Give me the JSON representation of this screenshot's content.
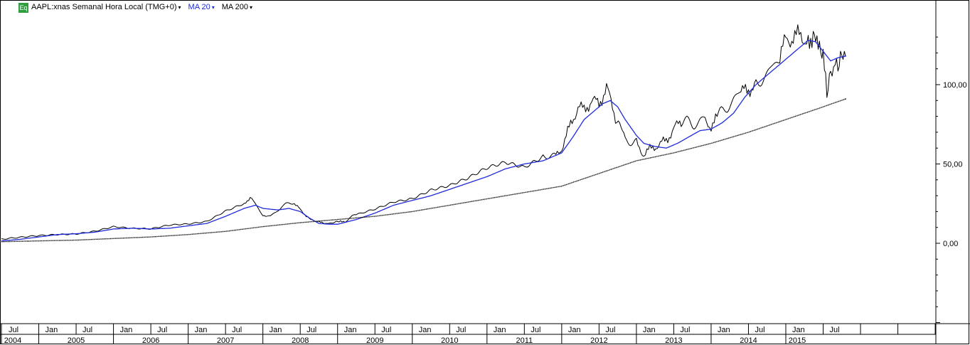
{
  "header": {
    "badge": "Eq",
    "symbol_label": "AAPL:xnas Semanal Hora Local (TMG+0)",
    "ma20_label": "MA 20",
    "ma200_label": "MA 200",
    "caret": "▾"
  },
  "colors": {
    "price": "#000000",
    "ma20": "#1f2bdb",
    "ma200": "#111111",
    "badge": "#2e9e3e",
    "grid": "#000000"
  },
  "chart_data": {
    "type": "line",
    "title": "AAPL:xnas Semanal Hora Local (TMG+0)",
    "xlabel": "",
    "ylabel": "",
    "ylim": [
      -50,
      137
    ],
    "xlim": [
      2004.5,
      2015.9
    ],
    "y_ticks": [
      {
        "value": 100,
        "label": "100,00"
      },
      {
        "value": 50,
        "label": "50,00"
      },
      {
        "value": 0,
        "label": "0,00"
      }
    ],
    "month_ticks": [
      {
        "x": 2004.5,
        "label": "Jul"
      },
      {
        "x": 2005.0,
        "label": "Jan"
      },
      {
        "x": 2005.5,
        "label": "Jul"
      },
      {
        "x": 2006.0,
        "label": "Jan"
      },
      {
        "x": 2006.5,
        "label": "Jul"
      },
      {
        "x": 2007.0,
        "label": "Jan"
      },
      {
        "x": 2007.5,
        "label": "Jul"
      },
      {
        "x": 2008.0,
        "label": "Jan"
      },
      {
        "x": 2008.5,
        "label": "Jul"
      },
      {
        "x": 2009.0,
        "label": "Jan"
      },
      {
        "x": 2009.5,
        "label": "Jul"
      },
      {
        "x": 2010.0,
        "label": "Jan"
      },
      {
        "x": 2010.5,
        "label": "Jul"
      },
      {
        "x": 2011.0,
        "label": "Jan"
      },
      {
        "x": 2011.5,
        "label": "Jul"
      },
      {
        "x": 2012.0,
        "label": "Jan"
      },
      {
        "x": 2012.5,
        "label": "Jul"
      },
      {
        "x": 2013.0,
        "label": "Jan"
      },
      {
        "x": 2013.5,
        "label": "Jul"
      },
      {
        "x": 2014.0,
        "label": "Jan"
      },
      {
        "x": 2014.5,
        "label": "Jul"
      },
      {
        "x": 2015.0,
        "label": "Jan"
      },
      {
        "x": 2015.5,
        "label": "Jul"
      }
    ],
    "year_ticks": [
      {
        "x": 2004.5,
        "label": "2004"
      },
      {
        "x": 2005.0,
        "label": "2005"
      },
      {
        "x": 2006.0,
        "label": "2006"
      },
      {
        "x": 2007.0,
        "label": "2007"
      },
      {
        "x": 2008.0,
        "label": "2008"
      },
      {
        "x": 2009.0,
        "label": "2009"
      },
      {
        "x": 2010.0,
        "label": "2010"
      },
      {
        "x": 2011.0,
        "label": "2011"
      },
      {
        "x": 2012.0,
        "label": "2012"
      },
      {
        "x": 2013.0,
        "label": "2013"
      },
      {
        "x": 2014.0,
        "label": "2014"
      },
      {
        "x": 2015.0,
        "label": "2015"
      }
    ],
    "extra_grid_x": [
      2016.0,
      2016.5,
      2017.0,
      2017.5,
      2018.0,
      2018.5
    ],
    "series": [
      {
        "name": "AAPL",
        "role": "price",
        "x": [
          2004.5,
          2004.75,
          2005.0,
          2005.25,
          2005.5,
          2005.75,
          2006.0,
          2006.25,
          2006.5,
          2006.75,
          2007.0,
          2007.25,
          2007.5,
          2007.75,
          2007.85,
          2008.0,
          2008.1,
          2008.25,
          2008.4,
          2008.5,
          2008.62,
          2008.75,
          2008.87,
          2009.0,
          2009.1,
          2009.25,
          2009.5,
          2009.75,
          2010.0,
          2010.25,
          2010.5,
          2010.75,
          2011.0,
          2011.25,
          2011.5,
          2011.75,
          2011.9,
          2012.0,
          2012.12,
          2012.22,
          2012.3,
          2012.4,
          2012.5,
          2012.6,
          2012.72,
          2012.85,
          2013.0,
          2013.1,
          2013.2,
          2013.3,
          2013.4,
          2013.5,
          2013.6,
          2013.75,
          2013.9,
          2014.0,
          2014.1,
          2014.25,
          2014.4,
          2014.5,
          2014.6,
          2014.75,
          2014.9,
          2015.0,
          2015.1,
          2015.2,
          2015.3,
          2015.35,
          2015.4,
          2015.45,
          2015.5,
          2015.55,
          2015.6,
          2015.68,
          2015.75,
          2015.8
        ],
        "values": [
          2,
          3.5,
          5,
          6,
          6.5,
          8,
          10.5,
          9,
          8.5,
          11,
          12,
          14,
          21,
          26,
          28,
          18,
          17,
          23,
          26,
          21,
          16,
          13,
          13,
          13,
          14,
          18,
          22,
          27,
          29,
          34,
          36,
          40,
          46,
          50,
          48,
          56,
          54,
          60,
          75,
          86,
          84,
          90,
          88,
          98,
          80,
          66,
          63,
          56,
          60,
          62,
          65,
          72,
          77,
          75,
          78,
          74,
          80,
          88,
          95,
          97,
          100,
          107,
          115,
          128,
          130,
          131,
          128,
          127,
          132,
          122,
          120,
          94,
          110,
          113,
          116,
          118
        ]
      },
      {
        "name": "MA 20",
        "role": "ma20",
        "x": [
          2004.5,
          2004.75,
          2005.0,
          2005.25,
          2005.5,
          2005.75,
          2006.0,
          2006.25,
          2006.5,
          2006.75,
          2007.0,
          2007.25,
          2007.5,
          2007.75,
          2007.9,
          2008.0,
          2008.2,
          2008.35,
          2008.5,
          2008.62,
          2008.75,
          2008.9,
          2009.0,
          2009.25,
          2009.5,
          2009.75,
          2010.0,
          2010.25,
          2010.5,
          2010.75,
          2011.0,
          2011.25,
          2011.5,
          2011.75,
          2011.9,
          2012.0,
          2012.15,
          2012.3,
          2012.45,
          2012.55,
          2012.65,
          2012.75,
          2012.85,
          2013.0,
          2013.1,
          2013.25,
          2013.4,
          2013.55,
          2013.7,
          2013.85,
          2014.0,
          2014.15,
          2014.3,
          2014.45,
          2014.6,
          2014.75,
          2014.9,
          2015.0,
          2015.1,
          2015.2,
          2015.3,
          2015.4,
          2015.5,
          2015.6,
          2015.7,
          2015.8
        ],
        "values": [
          1.5,
          2.5,
          4,
          5.5,
          6,
          7,
          9,
          9.5,
          9,
          9.5,
          11,
          12.5,
          17,
          22,
          24,
          22,
          21,
          22,
          20,
          16,
          12.5,
          12,
          12,
          15,
          19,
          24,
          27,
          30,
          34,
          38,
          42,
          47,
          50,
          52,
          55,
          57,
          67,
          78,
          84,
          88,
          90,
          86,
          78,
          68,
          63,
          61,
          60,
          63,
          67,
          71,
          72,
          76,
          82,
          92,
          100,
          106,
          112,
          116,
          120,
          124,
          128,
          127,
          121,
          115,
          117,
          118
        ]
      },
      {
        "name": "MA 200",
        "role": "ma200",
        "x": [
          2004.5,
          2005.0,
          2005.5,
          2006.0,
          2006.5,
          2007.0,
          2007.5,
          2008.0,
          2008.5,
          2009.0,
          2009.5,
          2010.0,
          2010.5,
          2011.0,
          2011.5,
          2012.0,
          2012.5,
          2013.0,
          2013.5,
          2014.0,
          2014.5,
          2015.0,
          2015.5,
          2015.8
        ],
        "values": [
          1,
          1.5,
          2,
          3,
          4,
          5.5,
          7.5,
          10.5,
          13,
          15,
          17,
          20,
          24,
          28,
          32,
          36,
          44,
          52,
          57,
          63,
          70,
          78,
          86,
          91
        ]
      }
    ]
  }
}
